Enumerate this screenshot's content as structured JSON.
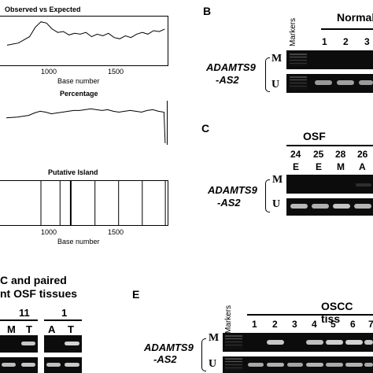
{
  "panelA": {
    "plot1_title": "Observed vs Expected",
    "plot2_title": "Percentage",
    "plot3_title": "Putative Island",
    "xlabel": "Base number",
    "xticks": [
      "1000",
      "1500"
    ]
  },
  "panelB": {
    "label": "B",
    "markers": "Markers",
    "group": "Normal",
    "lanes": [
      "1",
      "2",
      "3"
    ],
    "gene_line1": "ADAMTS9",
    "gene_line2": "-AS2",
    "m": "M",
    "u": "U"
  },
  "panelC": {
    "label": "C",
    "group": "OSF",
    "lanes": [
      "24",
      "25",
      "28",
      "26"
    ],
    "grades": [
      "E",
      "E",
      "M",
      "A"
    ],
    "gene_line1": "ADAMTS9",
    "gene_line2": "-AS2",
    "m": "M",
    "u": "U"
  },
  "panelD": {
    "title_line1": "C and paired",
    "title_line2": "nt OSF tissues",
    "pairs": [
      "11",
      "1"
    ],
    "lanes": [
      "M",
      "T",
      "A",
      "T"
    ]
  },
  "panelE": {
    "label": "E",
    "markers": "Markers",
    "group": "OSCC tiss",
    "lanes": [
      "1",
      "2",
      "3",
      "4",
      "5",
      "6",
      "7"
    ],
    "gene_line1": "ADAMTS9",
    "gene_line2": "-AS2",
    "m": "M",
    "u": "U"
  },
  "chart_data": [
    {
      "type": "line",
      "title": "Observed vs Expected",
      "xlabel": "Base number",
      "xticks": [
        1000,
        1500
      ],
      "x": [
        500,
        600,
        700,
        750,
        800,
        850,
        900,
        950,
        1000,
        1050,
        1100,
        1150,
        1200,
        1250,
        1300,
        1350,
        1400,
        1450,
        1500,
        1550,
        1600,
        1650,
        1700,
        1750,
        1800,
        1850,
        1900
      ],
      "y": [
        0.4,
        0.45,
        0.6,
        0.82,
        0.95,
        0.92,
        0.78,
        0.7,
        0.72,
        0.64,
        0.68,
        0.66,
        0.7,
        0.6,
        0.66,
        0.62,
        0.68,
        0.58,
        0.55,
        0.62,
        0.58,
        0.66,
        0.7,
        0.66,
        0.74,
        0.72,
        0.78
      ]
    },
    {
      "type": "line",
      "title": "Percentage",
      "xlabel": "",
      "x": [
        500,
        600,
        700,
        750,
        800,
        850,
        900,
        950,
        1000,
        1050,
        1100,
        1150,
        1200,
        1250,
        1300,
        1350,
        1400,
        1450,
        1500,
        1550,
        1600,
        1650,
        1700,
        1750,
        1800,
        1850,
        1900,
        1910
      ],
      "y": [
        0.62,
        0.64,
        0.68,
        0.74,
        0.78,
        0.76,
        0.72,
        0.74,
        0.76,
        0.78,
        0.8,
        0.8,
        0.82,
        0.84,
        0.82,
        0.8,
        0.82,
        0.78,
        0.76,
        0.78,
        0.8,
        0.78,
        0.76,
        0.8,
        0.82,
        0.78,
        0.76,
        0.0
      ]
    },
    {
      "type": "line",
      "title": "Putative Island",
      "xlabel": "Base number",
      "xticks": [
        1000,
        1500
      ],
      "x": [
        800,
        970,
        1065,
        1280,
        1490,
        1700,
        1905
      ],
      "y": [
        1,
        1,
        1,
        1,
        1,
        1,
        1
      ]
    }
  ]
}
